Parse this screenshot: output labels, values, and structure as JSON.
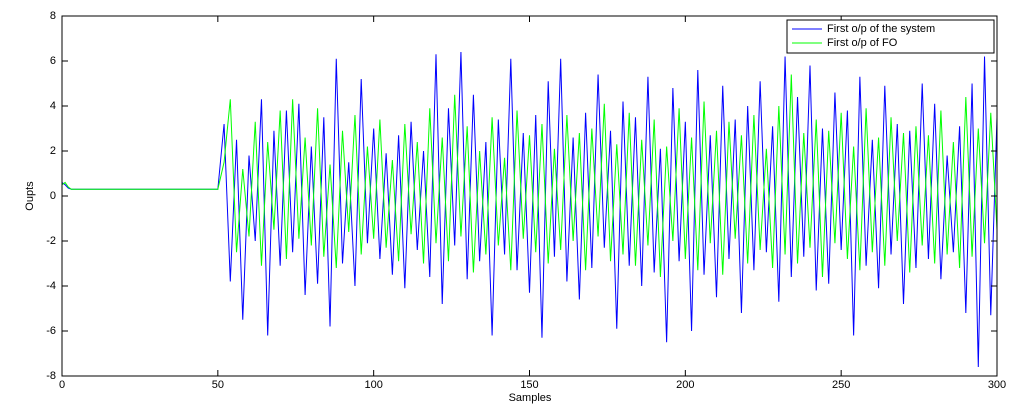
{
  "chart_data": {
    "type": "line",
    "xlabel": "Samples",
    "ylabel": "Oupts",
    "x": [
      0,
      1,
      2,
      3,
      5,
      10,
      20,
      30,
      40,
      50,
      52,
      54,
      56,
      58,
      60,
      62,
      64,
      66,
      68,
      70,
      72,
      74,
      76,
      78,
      80,
      82,
      84,
      86,
      88,
      90,
      92,
      94,
      96,
      98,
      100,
      102,
      104,
      106,
      108,
      110,
      112,
      114,
      116,
      118,
      120,
      122,
      124,
      126,
      128,
      130,
      132,
      134,
      136,
      138,
      140,
      142,
      144,
      146,
      148,
      150,
      152,
      154,
      156,
      158,
      160,
      162,
      164,
      166,
      168,
      170,
      172,
      174,
      176,
      178,
      180,
      182,
      184,
      186,
      188,
      190,
      192,
      194,
      196,
      198,
      200,
      202,
      204,
      206,
      208,
      210,
      212,
      214,
      216,
      218,
      220,
      222,
      224,
      226,
      228,
      230,
      232,
      234,
      236,
      238,
      240,
      242,
      244,
      246,
      248,
      250,
      252,
      254,
      256,
      258,
      260,
      262,
      264,
      266,
      268,
      270,
      272,
      274,
      276,
      278,
      280,
      282,
      284,
      286,
      288,
      290,
      292,
      294,
      296,
      298,
      300
    ],
    "series": [
      {
        "name": "First o/p of the system",
        "color": "#0000ff",
        "values": [
          0.6,
          0.5,
          0.35,
          0.3,
          0.3,
          0.3,
          0.3,
          0.3,
          0.3,
          0.3,
          3.2,
          -3.8,
          2.5,
          -5.5,
          1.8,
          -2.0,
          4.3,
          -6.2,
          2.9,
          -3.1,
          3.8,
          -2.5,
          4.1,
          -4.4,
          2.2,
          -3.9,
          3.5,
          -5.8,
          6.1,
          -3.0,
          1.5,
          -4.0,
          5.2,
          -2.1,
          3.0,
          -2.8,
          1.9,
          -3.5,
          2.7,
          -4.1,
          3.3,
          -2.4,
          2.0,
          -3.6,
          6.3,
          -4.8,
          3.9,
          -2.2,
          6.4,
          -3.7,
          4.5,
          -2.9,
          2.4,
          -6.2,
          3.4,
          -2.6,
          6.1,
          -3.3,
          2.8,
          -4.3,
          3.6,
          -6.3,
          5.1,
          -2.7,
          6.1,
          -3.8,
          2.6,
          -4.6,
          3.7,
          -3.2,
          5.4,
          -2.3,
          2.9,
          -5.9,
          4.2,
          -3.1,
          3.5,
          -4.0,
          5.3,
          -3.4,
          2.1,
          -6.5,
          4.8,
          -2.9,
          3.3,
          -6.0,
          5.6,
          -3.5,
          2.7,
          -4.5,
          4.9,
          -2.8,
          3.4,
          -5.2,
          4.0,
          -3.3,
          5.1,
          -2.5,
          3.1,
          -4.7,
          6.2,
          -3.6,
          4.4,
          -2.7,
          5.8,
          -4.2,
          3.0,
          -3.9,
          4.6,
          -2.4,
          3.8,
          -6.2,
          5.3,
          -3.1,
          2.5,
          -4.1,
          4.9,
          -2.6,
          3.2,
          -4.8,
          2.9,
          -3.2,
          5.0,
          -2.8,
          4.1,
          -3.7,
          1.8,
          -2.5,
          3.1,
          -5.2,
          5.0,
          -7.6,
          6.2,
          -5.3,
          3.5
        ]
      },
      {
        "name": "First o/p of FO",
        "color": "#00ff00",
        "values": [
          0.5,
          0.6,
          0.4,
          0.3,
          0.3,
          0.3,
          0.3,
          0.3,
          0.3,
          0.3,
          1.5,
          4.3,
          -2.5,
          1.2,
          -1.8,
          3.3,
          -3.1,
          2.4,
          -1.5,
          3.8,
          -2.8,
          4.3,
          -1.9,
          2.6,
          -2.2,
          3.9,
          -2.7,
          1.4,
          -3.2,
          2.9,
          -1.6,
          3.6,
          -2.6,
          2.2,
          -1.9,
          3.4,
          -2.3,
          1.6,
          -2.9,
          3.2,
          -1.7,
          2.4,
          -3.0,
          3.9,
          -2.1,
          2.6,
          -2.9,
          4.5,
          -1.8,
          3.1,
          -3.4,
          2.0,
          -2.6,
          3.5,
          -2.2,
          1.7,
          -3.3,
          3.8,
          -1.9,
          2.7,
          -2.5,
          3.2,
          -3.0,
          2.1,
          -2.4,
          3.6,
          -2.0,
          2.8,
          -3.3,
          3.0,
          -1.8,
          4.1,
          -2.9,
          2.3,
          -2.6,
          3.7,
          -3.1,
          2.5,
          -2.2,
          3.4,
          -3.6,
          2.2,
          -2.0,
          3.9,
          -2.8,
          2.6,
          -3.3,
          4.2,
          -2.1,
          2.9,
          -3.5,
          3.3,
          -1.9,
          2.7,
          -3.0,
          3.6,
          -2.4,
          2.1,
          -3.2,
          4.0,
          -2.6,
          5.4,
          -3.0,
          2.8,
          -2.3,
          3.4,
          -3.6,
          2.9,
          -2.1,
          3.7,
          -2.8,
          2.2,
          -3.3,
          3.9,
          -2.5,
          2.6,
          -3.1,
          3.5,
          -2.0,
          2.8,
          -3.4,
          3.1,
          -2.2,
          2.7,
          -3.0,
          3.8,
          -2.6,
          2.4,
          -3.2,
          4.4,
          -2.7,
          3.0,
          -2.1,
          3.7,
          -1.5
        ]
      }
    ],
    "xlim": [
      0,
      300
    ],
    "xticks": [
      0,
      50,
      100,
      150,
      200,
      250,
      300
    ],
    "ylim": [
      -8,
      8
    ],
    "yticks": [
      -8,
      -6,
      -4,
      -2,
      0,
      2,
      4,
      6,
      8
    ],
    "legend": "upper right"
  }
}
